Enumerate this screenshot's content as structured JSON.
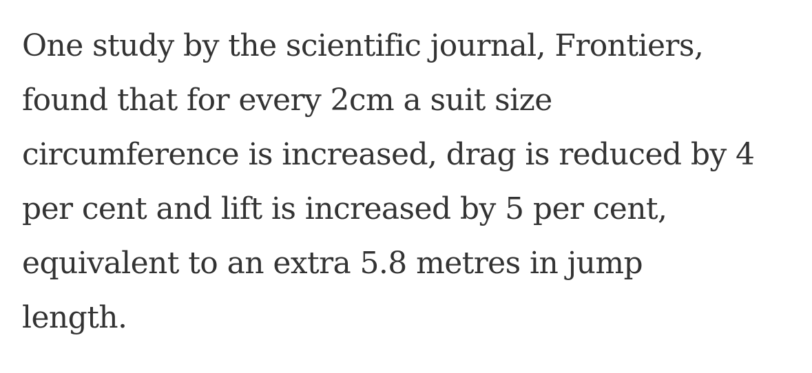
{
  "article": {
    "paragraph_lines": [
      "One study by the scientific journal, Frontiers,",
      "found that for every 2cm a suit size",
      "circumference is increased, drag is reduced by 4",
      "per cent and lift is increased by 5 per cent,",
      "equivalent to an extra 5.8 metres in jump",
      "length."
    ],
    "text_color": "#333333"
  }
}
